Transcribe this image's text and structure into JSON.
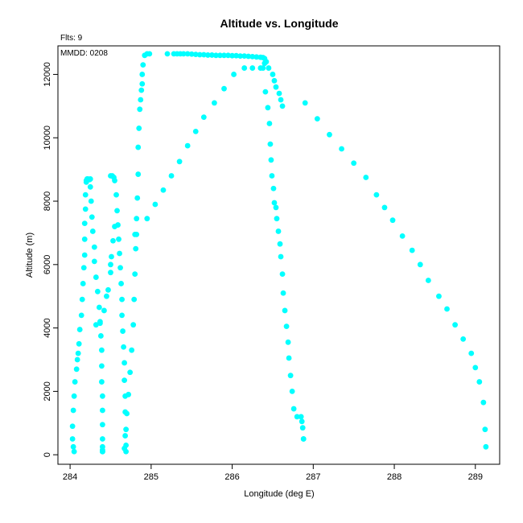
{
  "chart_data": {
    "type": "scatter",
    "title": "Altitude vs. Longitude",
    "xlabel": "Longitude (deg E)",
    "ylabel": "Altitude (m)",
    "fits_label": "Flts: 9",
    "mmdd_label": "MMDD: 0208",
    "xlim": [
      283.85,
      289.3
    ],
    "ylim": [
      -300,
      12900
    ],
    "x_ticks": [
      284,
      285,
      286,
      287,
      288,
      289
    ],
    "y_ticks": [
      0,
      2000,
      4000,
      6000,
      8000,
      10000,
      12000
    ],
    "marker_color": "#00ffff",
    "grid": false,
    "series": [
      {
        "x": [
          284.05,
          284.04,
          284.03,
          284.03,
          284.04,
          284.05,
          284.06,
          284.08,
          284.09,
          284.1,
          284.11,
          284.12,
          284.14,
          284.15,
          284.16,
          284.17,
          284.18,
          284.18,
          284.18,
          284.19,
          284.19,
          284.2,
          284.2,
          284.21,
          284.22,
          284.24,
          284.25
        ],
        "y": [
          100,
          250,
          500,
          900,
          1400,
          1850,
          2300,
          2700,
          3000,
          3200,
          3500,
          3950,
          4400,
          4900,
          5400,
          5900,
          6300,
          6800,
          7300,
          7750,
          8200,
          8600,
          8650,
          8700,
          8700,
          8680,
          8700
        ]
      },
      {
        "x": [
          284.25,
          284.26,
          284.27,
          284.28,
          284.3,
          284.3,
          284.32,
          284.34,
          284.36,
          284.37,
          284.38,
          284.39,
          284.39,
          284.39,
          284.4,
          284.4,
          284.4,
          284.4,
          284.4,
          284.4,
          284.4,
          284.4,
          284.4
        ],
        "y": [
          8450,
          8000,
          7500,
          7050,
          6550,
          6100,
          5600,
          5150,
          4650,
          4150,
          3750,
          3300,
          2800,
          2300,
          1850,
          1400,
          950,
          500,
          250,
          100,
          100,
          150,
          100
        ]
      },
      {
        "x": [
          284.32,
          284.37,
          284.42,
          284.45,
          284.47,
          284.5,
          284.5,
          284.51,
          284.53,
          284.55
        ],
        "y": [
          4100,
          4200,
          4550,
          5000,
          5200,
          5750,
          6000,
          6250,
          6750,
          7200
        ]
      },
      {
        "x": [
          284.5,
          284.52,
          284.54,
          284.55,
          284.57,
          284.58,
          284.59,
          284.6,
          284.61,
          284.62,
          284.63,
          284.64,
          284.64,
          284.65,
          284.66,
          284.67,
          284.67,
          284.68,
          284.68,
          284.69,
          284.69,
          284.69
        ],
        "y": [
          8800,
          8800,
          8750,
          8650,
          8200,
          7700,
          7250,
          6800,
          6350,
          5900,
          5400,
          4900,
          4400,
          3900,
          3400,
          2900,
          2350,
          1850,
          1350,
          800,
          300,
          100
        ]
      },
      {
        "x": [
          284.67,
          284.68,
          284.7,
          284.72,
          284.74,
          284.76,
          284.78,
          284.79,
          284.8,
          284.81,
          284.82,
          284.82,
          284.83,
          284.84,
          284.84,
          284.85,
          284.86,
          284.87,
          284.88,
          284.89,
          284.89,
          284.9,
          284.92,
          284.95,
          284.98
        ],
        "y": [
          200,
          600,
          1300,
          1900,
          2600,
          3300,
          4100,
          4900,
          5700,
          6500,
          6950,
          7450,
          8100,
          8850,
          9700,
          10300,
          10900,
          11200,
          11500,
          11700,
          12000,
          12300,
          12600,
          12650,
          12650
        ]
      },
      {
        "x": [
          285.2,
          285.28,
          285.32,
          285.36,
          285.4,
          285.45,
          285.5,
          285.55,
          285.6,
          285.65,
          285.7,
          285.75,
          285.8,
          285.85,
          285.9,
          285.95,
          286.0,
          286.05,
          286.1,
          286.15,
          286.2,
          286.25,
          286.3,
          286.35,
          286.38
        ],
        "y": [
          12650,
          12650,
          12650,
          12650,
          12650,
          12650,
          12640,
          12630,
          12620,
          12620,
          12610,
          12610,
          12600,
          12600,
          12600,
          12600,
          12590,
          12590,
          12580,
          12580,
          12570,
          12560,
          12550,
          12540,
          12530
        ]
      },
      {
        "x": [
          286.38,
          286.41,
          286.44,
          286.46,
          286.47,
          286.48,
          286.49,
          286.51,
          286.52,
          286.54,
          286.55,
          286.57,
          286.59,
          286.6,
          286.62,
          286.63,
          286.65,
          286.67,
          286.69,
          286.7,
          286.72,
          286.74,
          286.76,
          286.8,
          286.85,
          286.86,
          286.87,
          286.88
        ],
        "y": [
          12200,
          11450,
          10950,
          10450,
          9800,
          9300,
          8800,
          8400,
          7950,
          7800,
          7450,
          7050,
          6650,
          6250,
          5700,
          5100,
          4550,
          4050,
          3550,
          3050,
          2500,
          2000,
          1450,
          1200,
          1200,
          1050,
          850,
          500
        ]
      },
      {
        "x": [
          284.8,
          284.95,
          285.05,
          285.15,
          285.25,
          285.35,
          285.45,
          285.55,
          285.65,
          285.78,
          285.9,
          286.02,
          286.15,
          286.25,
          286.35,
          286.4,
          286.4,
          286.42,
          286.45,
          286.5,
          286.52,
          286.54,
          286.58,
          286.6,
          286.62
        ],
        "y": [
          6950,
          7450,
          7900,
          8350,
          8800,
          9250,
          9750,
          10200,
          10650,
          11100,
          11550,
          12000,
          12200,
          12200,
          12200,
          12350,
          12500,
          12400,
          12200,
          12000,
          11800,
          11600,
          11400,
          11200,
          11000
        ]
      },
      {
        "x": [
          286.88,
          286.9,
          287.05,
          287.2,
          287.35,
          287.5,
          287.65,
          287.78,
          287.88,
          287.98,
          288.1,
          288.22,
          288.32,
          288.42,
          288.55,
          288.65,
          288.75,
          288.85,
          288.95,
          289.0,
          289.05,
          289.1,
          289.12,
          289.13
        ],
        "y": [
          500,
          11100,
          10600,
          10100,
          9650,
          9200,
          8750,
          8200,
          7800,
          7400,
          6900,
          6450,
          6000,
          5500,
          5000,
          4600,
          4100,
          3650,
          3200,
          2750,
          2300,
          1650,
          800,
          250
        ]
      }
    ]
  }
}
